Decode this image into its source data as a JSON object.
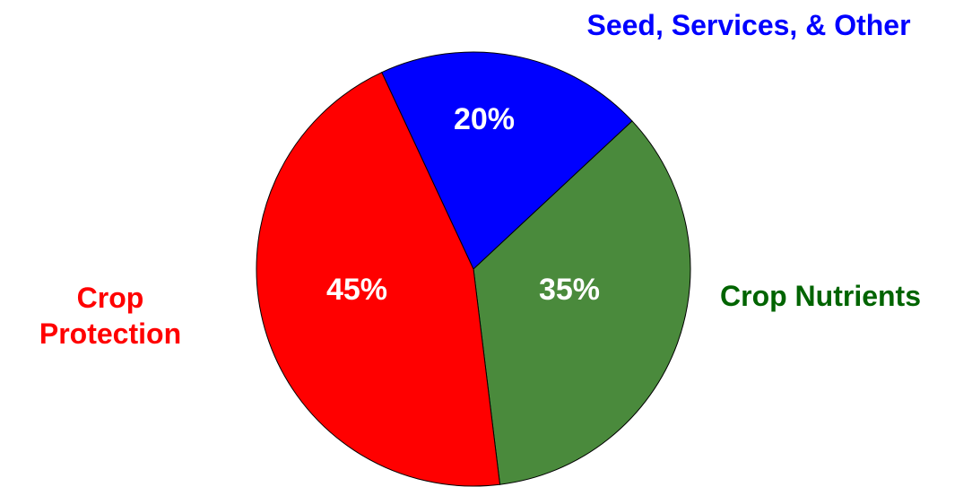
{
  "chart_data": {
    "type": "pie",
    "categories": [
      "Seed, Services, & Other",
      "Crop Nutrients",
      "Crop Protection"
    ],
    "values": [
      20,
      35,
      45
    ],
    "value_labels": [
      "20%",
      "35%",
      "45%"
    ],
    "colors": [
      "#0000ff",
      "#4a8a3c",
      "#ff0000"
    ],
    "label_colors": [
      "#0000ff",
      "#006400",
      "#ff0000"
    ]
  }
}
